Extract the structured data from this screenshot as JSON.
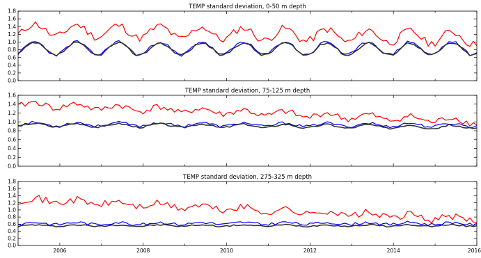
{
  "chart_data": [
    {
      "type": "line",
      "title": "TEMP standard deviation, 0-50 m depth",
      "xlim": [
        2005.0,
        2016.0
      ],
      "ylim": [
        0.0,
        1.8
      ],
      "yticks": [
        "0.0",
        "0.2",
        "0.4",
        "0.6",
        "0.8",
        "1.0",
        "1.2",
        "1.4",
        "1.6",
        "1.8"
      ],
      "xticks": [],
      "series": [
        {
          "color": "#ff0000",
          "base": 1.32,
          "amp": 0.16,
          "trend": -0.02,
          "noise": 0.1,
          "seed": 11
        },
        {
          "color": "#0000ff",
          "base": 0.84,
          "amp": 0.17,
          "trend": 0.0,
          "noise": 0.04,
          "seed": 23
        },
        {
          "color": "#333333",
          "base": 0.82,
          "amp": 0.16,
          "trend": 0.0,
          "noise": 0.03,
          "seed": 37
        }
      ]
    },
    {
      "type": "line",
      "title": "TEMP standard deviation, 75-125 m depth",
      "xlim": [
        2005.0,
        2016.0
      ],
      "ylim": [
        0.0,
        1.6
      ],
      "yticks": [
        "0.0",
        "0.2",
        "0.4",
        "0.6",
        "0.8",
        "1.0",
        "1.2",
        "1.4",
        "1.6"
      ],
      "xticks": [],
      "series": [
        {
          "color": "#ff0000",
          "base": 1.4,
          "amp": 0.06,
          "trend": -0.035,
          "noise": 0.07,
          "seed": 41
        },
        {
          "color": "#0000ff",
          "base": 0.95,
          "amp": 0.04,
          "trend": -0.002,
          "noise": 0.03,
          "seed": 53
        },
        {
          "color": "#333333",
          "base": 0.93,
          "amp": 0.04,
          "trend": -0.004,
          "noise": 0.02,
          "seed": 67
        }
      ]
    },
    {
      "type": "line",
      "title": "TEMP standard deviation, 275-325 m depth",
      "xlim": [
        2005.0,
        2016.0
      ],
      "ylim": [
        0.0,
        1.8
      ],
      "yticks": [
        "0.0",
        "0.2",
        "0.4",
        "0.6",
        "0.8",
        "1.0",
        "1.2",
        "1.4",
        "1.6",
        "1.8"
      ],
      "xticks": [
        "2006",
        "2008",
        "2010",
        "2012",
        "2014",
        "2016"
      ],
      "series": [
        {
          "color": "#ff0000",
          "base": 1.3,
          "amp": 0.06,
          "trend": -0.052,
          "noise": 0.1,
          "seed": 71
        },
        {
          "color": "#0000ff",
          "base": 0.62,
          "amp": 0.03,
          "trend": 0.0,
          "noise": 0.04,
          "seed": 83
        },
        {
          "color": "#333333",
          "base": 0.56,
          "amp": 0.02,
          "trend": 0.0,
          "noise": 0.02,
          "seed": 97
        }
      ]
    }
  ]
}
